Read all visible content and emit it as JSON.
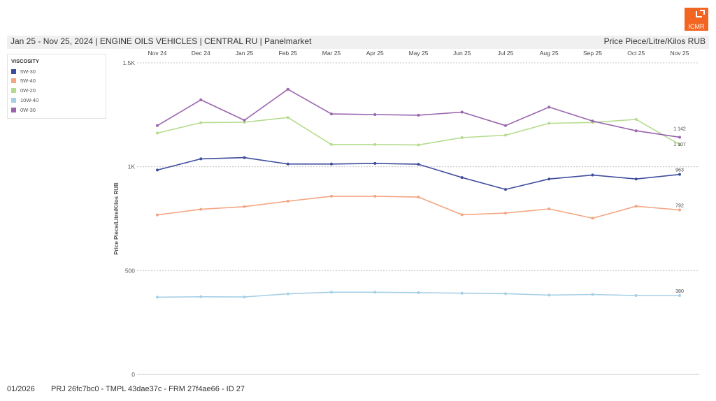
{
  "brand": {
    "name": "ICMR",
    "color": "#f26522"
  },
  "header": {
    "title": "Jan 25 - Nov 25, 2024 | ENGINE OILS VEHICLES | CENTRAL RU | Panelmarket",
    "unit": "Price Piece/Litre/Kilos RUB"
  },
  "footer": {
    "date": "01/2026",
    "reference": "PRJ 26fc7bc0 - TMPL 43dae37c - FRM 27f4ae66 - ID 27"
  },
  "chart_data": {
    "type": "line",
    "title": "Jan 25 - Nov 25, 2024 | ENGINE OILS VEHICLES | CENTRAL RU | Panelmarket",
    "ylabel": "Price Piece/Litre/Kilos RUB",
    "xlabel": "",
    "x_axis_position": "top",
    "categories": [
      "Nov 24",
      "Dec 24",
      "Jan 25",
      "Feb 25",
      "Mar 25",
      "Apr 25",
      "May 25",
      "Jun 25",
      "Jul 25",
      "Aug 25",
      "Sep 25",
      "Oct 25",
      "Nov 25"
    ],
    "ylim": [
      0,
      1500
    ],
    "yticks": [
      0,
      500,
      1000,
      1500
    ],
    "ytick_labels": [
      "0",
      "500",
      "1K",
      "1.5K"
    ],
    "grid": true,
    "legend": {
      "title": "VISCOSITY",
      "placement": "top-left"
    },
    "series": [
      {
        "name": "5W-30",
        "color": "#3f4c9c",
        "end_label": "963",
        "values": [
          984,
          1038,
          1044,
          1013,
          1013,
          1016,
          1012,
          948,
          891,
          941,
          960,
          941,
          963
        ]
      },
      {
        "name": "5W-40",
        "color": "#f4a582",
        "end_label": "792",
        "values": [
          768,
          795,
          808,
          834,
          858,
          858,
          854,
          769,
          777,
          797,
          752,
          810,
          792
        ]
      },
      {
        "name": "0W-20",
        "color": "#b5dc8e",
        "end_label": "1 107",
        "values": [
          1162,
          1212,
          1214,
          1237,
          1107,
          1107,
          1105,
          1140,
          1152,
          1209,
          1213,
          1228,
          1107
        ]
      },
      {
        "name": "10W-40",
        "color": "#a6cfe6",
        "end_label": "380",
        "values": [
          372,
          374,
          373,
          388,
          396,
          396,
          394,
          391,
          389,
          382,
          385,
          380,
          380
        ]
      },
      {
        "name": "0W-30",
        "color": "#9a64ad",
        "end_label": "1 142",
        "values": [
          1198,
          1322,
          1224,
          1373,
          1254,
          1251,
          1248,
          1263,
          1198,
          1287,
          1220,
          1173,
          1142
        ]
      }
    ]
  }
}
